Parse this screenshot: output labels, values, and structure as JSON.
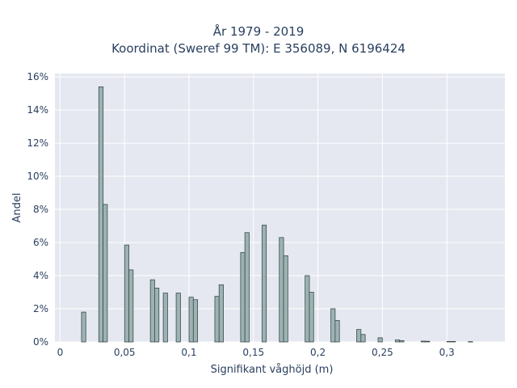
{
  "chart_data": {
    "type": "bar",
    "title_lines": [
      "År 1979 - 2019",
      "Koordinat (Sweref 99 TM): E 356089, N 6196424"
    ],
    "xlabel": "Signifikant våghöjd (m)",
    "ylabel": "Andel",
    "xlim": [
      -0.004,
      0.345
    ],
    "ylim": [
      0,
      16.2
    ],
    "x_ticks": [
      {
        "v": 0,
        "label": "0"
      },
      {
        "v": 0.05,
        "label": "0,05"
      },
      {
        "v": 0.1,
        "label": "0,1"
      },
      {
        "v": 0.15,
        "label": "0,15"
      },
      {
        "v": 0.2,
        "label": "0,2"
      },
      {
        "v": 0.25,
        "label": "0,25"
      },
      {
        "v": 0.3,
        "label": "0,3"
      }
    ],
    "y_ticks": [
      {
        "v": 0,
        "label": "0%"
      },
      {
        "v": 2,
        "label": "2%"
      },
      {
        "v": 4,
        "label": "4%"
      },
      {
        "v": 6,
        "label": "6%"
      },
      {
        "v": 8,
        "label": "8%"
      },
      {
        "v": 10,
        "label": "10%"
      },
      {
        "v": 12,
        "label": "12%"
      },
      {
        "v": 14,
        "label": "14%"
      },
      {
        "v": 16,
        "label": "16%"
      }
    ],
    "bin_width": 0.00333,
    "bins": [
      {
        "x": 0.0183,
        "y": 1.8
      },
      {
        "x": 0.0317,
        "y": 15.4
      },
      {
        "x": 0.035,
        "y": 8.3
      },
      {
        "x": 0.0517,
        "y": 5.85
      },
      {
        "x": 0.055,
        "y": 4.35
      },
      {
        "x": 0.0717,
        "y": 3.75
      },
      {
        "x": 0.075,
        "y": 3.25
      },
      {
        "x": 0.0817,
        "y": 2.95
      },
      {
        "x": 0.0917,
        "y": 2.95
      },
      {
        "x": 0.1017,
        "y": 2.7
      },
      {
        "x": 0.105,
        "y": 2.55
      },
      {
        "x": 0.1217,
        "y": 2.75
      },
      {
        "x": 0.125,
        "y": 3.45
      },
      {
        "x": 0.1417,
        "y": 5.4
      },
      {
        "x": 0.145,
        "y": 6.6
      },
      {
        "x": 0.1583,
        "y": 7.05
      },
      {
        "x": 0.1717,
        "y": 6.3
      },
      {
        "x": 0.175,
        "y": 5.2
      },
      {
        "x": 0.1917,
        "y": 4.0
      },
      {
        "x": 0.195,
        "y": 3.0
      },
      {
        "x": 0.2117,
        "y": 2.0
      },
      {
        "x": 0.215,
        "y": 1.3
      },
      {
        "x": 0.2317,
        "y": 0.75
      },
      {
        "x": 0.235,
        "y": 0.45
      },
      {
        "x": 0.2483,
        "y": 0.25
      },
      {
        "x": 0.2617,
        "y": 0.12
      },
      {
        "x": 0.265,
        "y": 0.08
      },
      {
        "x": 0.2817,
        "y": 0.05
      },
      {
        "x": 0.285,
        "y": 0.04
      },
      {
        "x": 0.3017,
        "y": 0.03
      },
      {
        "x": 0.305,
        "y": 0.03
      },
      {
        "x": 0.3183,
        "y": 0.02
      }
    ],
    "colors": {
      "plot_background": "#e5e8f0",
      "grid": "#ffffff",
      "bar_fill": "#9db3b3",
      "bar_stroke": "#3a4a4a",
      "text": "#2a3f5f"
    },
    "grid": true
  }
}
